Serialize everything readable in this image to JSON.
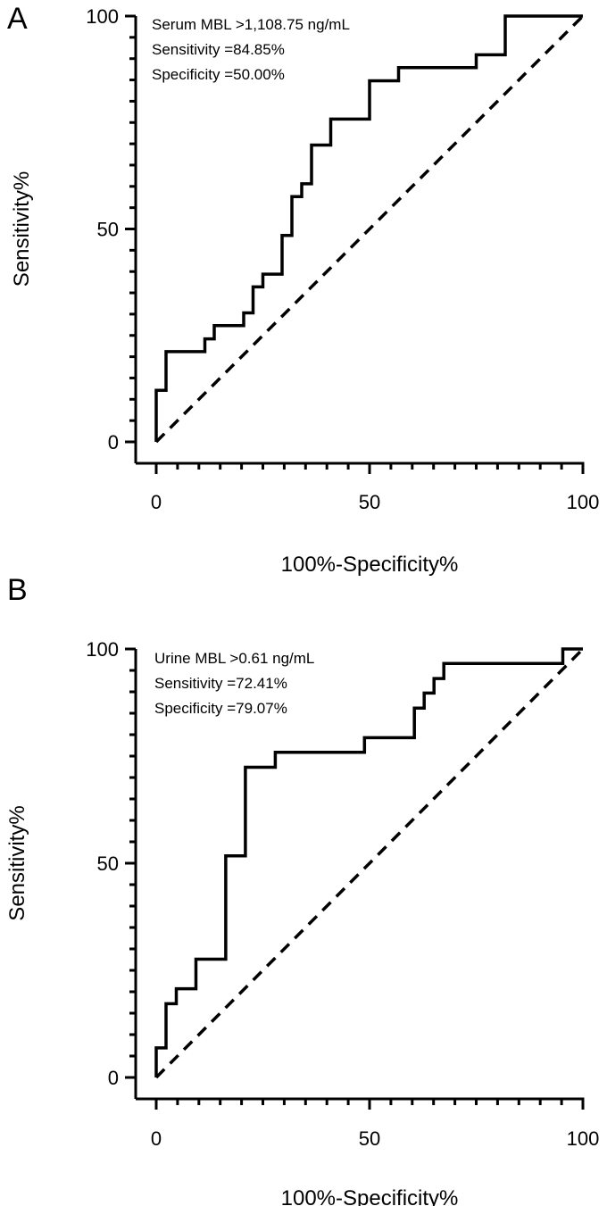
{
  "chart_data": [
    {
      "panel": "A",
      "type": "line",
      "xlabel": "100%-Specificity%",
      "ylabel": "Sensitivity%",
      "xlim": [
        0,
        100
      ],
      "ylim": [
        0,
        100
      ],
      "xticks": [
        "0",
        "50",
        "100"
      ],
      "yticks": [
        "0",
        "50",
        "100"
      ],
      "annotations": [
        "Serum MBL >1,108.75 ng/mL",
        "Sensitivity =84.85%",
        "Specificity =50.00%"
      ],
      "series": [
        {
          "style": "solid",
          "x": [
            0,
            0,
            2.3,
            2.3,
            11.4,
            11.4,
            13.6,
            13.6,
            20.5,
            20.5,
            22.7,
            22.7,
            25,
            25,
            29.5,
            29.5,
            31.8,
            31.8,
            34.1,
            34.1,
            36.4,
            36.4,
            40.9,
            40.9,
            50,
            50,
            56.8,
            56.8,
            75,
            75,
            81.8,
            81.8,
            100
          ],
          "y": [
            0,
            12.1,
            12.1,
            21.2,
            21.2,
            24.2,
            24.2,
            27.3,
            27.3,
            30.3,
            30.3,
            36.4,
            36.4,
            39.4,
            39.4,
            48.5,
            48.5,
            57.6,
            57.6,
            60.6,
            60.6,
            69.7,
            69.7,
            75.8,
            75.8,
            84.8,
            84.8,
            87.9,
            87.9,
            90.9,
            90.9,
            100,
            100
          ]
        },
        {
          "style": "dashed",
          "x": [
            0,
            100
          ],
          "y": [
            0,
            100
          ]
        }
      ]
    },
    {
      "panel": "B",
      "type": "line",
      "xlabel": "100%-Specificity%",
      "ylabel": "Sensitivity%",
      "xlim": [
        0,
        100
      ],
      "ylim": [
        0,
        100
      ],
      "xticks": [
        "0",
        "50",
        "100"
      ],
      "yticks": [
        "0",
        "50",
        "100"
      ],
      "annotations": [
        "Urine MBL >0.61 ng/mL",
        "Sensitivity =72.41%",
        "Specificity =79.07%"
      ],
      "series": [
        {
          "style": "solid",
          "x": [
            0,
            0,
            2.3,
            2.3,
            4.7,
            4.7,
            9.3,
            9.3,
            16.3,
            16.3,
            20.9,
            20.9,
            27.9,
            27.9,
            48.8,
            48.8,
            60.5,
            60.5,
            62.8,
            62.8,
            65.1,
            65.1,
            67.4,
            67.4,
            95.3,
            95.3,
            100
          ],
          "y": [
            0,
            6.9,
            6.9,
            17.2,
            17.2,
            20.7,
            20.7,
            27.6,
            27.6,
            51.7,
            51.7,
            72.4,
            72.4,
            75.9,
            75.9,
            79.3,
            79.3,
            86.2,
            86.2,
            89.7,
            89.7,
            93.1,
            93.1,
            96.6,
            96.6,
            100,
            100
          ]
        },
        {
          "style": "dashed",
          "x": [
            0,
            100
          ],
          "y": [
            0,
            100
          ]
        }
      ]
    }
  ]
}
